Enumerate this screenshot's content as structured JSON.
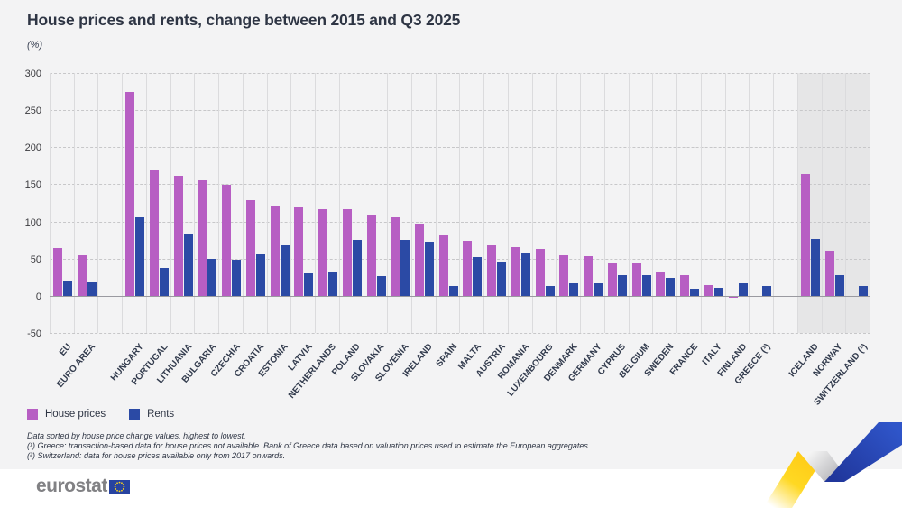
{
  "header": {
    "title": "House prices and rents, change between 2015 and Q3 2025",
    "unit_label": "(%)"
  },
  "chart_data": {
    "type": "bar",
    "title": "House prices and rents, change between 2015 and Q3 2025",
    "ylabel": "(%)",
    "xlabel": "",
    "ylim": [
      -50,
      300
    ],
    "yticks": [
      300,
      250,
      200,
      150,
      100,
      50,
      0,
      -50
    ],
    "grid": "horizontal dashed gridlines, vertical category separators",
    "legend_position": "bottom-left",
    "series": [
      {
        "name": "House prices",
        "color": "#b75ec3"
      },
      {
        "name": "Rents",
        "color": "#2b4aa5"
      }
    ],
    "entries": [
      {
        "label": "EU",
        "house_prices": 64,
        "rents": 21
      },
      {
        "label": "EURO AREA",
        "house_prices": 54,
        "rents": 19
      },
      {
        "gap": true
      },
      {
        "label": "HUNGARY",
        "house_prices": 275,
        "rents": 106
      },
      {
        "label": "PORTUGAL",
        "house_prices": 170,
        "rents": 37
      },
      {
        "label": "LITHUANIA",
        "house_prices": 161,
        "rents": 84
      },
      {
        "label": "BULGARIA",
        "house_prices": 155,
        "rents": 50
      },
      {
        "label": "CZECHIA",
        "house_prices": 149,
        "rents": 48
      },
      {
        "label": "CROATIA",
        "house_prices": 129,
        "rents": 57
      },
      {
        "label": "ESTONIA",
        "house_prices": 121,
        "rents": 69
      },
      {
        "label": "LATVIA",
        "house_prices": 120,
        "rents": 30
      },
      {
        "label": "NETHERLANDS",
        "house_prices": 117,
        "rents": 31
      },
      {
        "label": "POLAND",
        "house_prices": 117,
        "rents": 75
      },
      {
        "label": "SLOVAKIA",
        "house_prices": 109,
        "rents": 27
      },
      {
        "label": "SLOVENIA",
        "house_prices": 106,
        "rents": 75
      },
      {
        "label": "IRELAND",
        "house_prices": 97,
        "rents": 73
      },
      {
        "label": "SPAIN",
        "house_prices": 83,
        "rents": 13
      },
      {
        "label": "MALTA",
        "house_prices": 74,
        "rents": 52
      },
      {
        "label": "AUSTRIA",
        "house_prices": 68,
        "rents": 46
      },
      {
        "label": "ROMANIA",
        "house_prices": 65,
        "rents": 58
      },
      {
        "label": "LUXEMBOURG",
        "house_prices": 63,
        "rents": 13
      },
      {
        "label": "DENMARK",
        "house_prices": 55,
        "rents": 17
      },
      {
        "label": "GERMANY",
        "house_prices": 53,
        "rents": 17
      },
      {
        "label": "CYPRUS",
        "house_prices": 45,
        "rents": 28
      },
      {
        "label": "BELGIUM",
        "house_prices": 44,
        "rents": 28
      },
      {
        "label": "SWEDEN",
        "house_prices": 33,
        "rents": 24
      },
      {
        "label": "FRANCE",
        "house_prices": 28,
        "rents": 9
      },
      {
        "label": "ITALY",
        "house_prices": 15,
        "rents": 11
      },
      {
        "label": "FINLAND",
        "house_prices": -2,
        "rents": 17
      },
      {
        "label": "GREECE (¹)",
        "house_prices": null,
        "rents": 13
      },
      {
        "gap": true
      },
      {
        "label": "ICELAND",
        "house_prices": 164,
        "rents": 76,
        "shaded": true
      },
      {
        "label": "NORWAY",
        "house_prices": 61,
        "rents": 28,
        "shaded": true
      },
      {
        "label": "SWITZERLAND (²)",
        "house_prices": null,
        "rents": 13,
        "shaded": true
      }
    ]
  },
  "legend": {
    "items": [
      {
        "label": "House prices",
        "color": "#b75ec3"
      },
      {
        "label": "Rents",
        "color": "#2b4aa5"
      }
    ]
  },
  "footnotes": {
    "line1": "Data sorted by house price change values, highest to lowest.",
    "line2": "(¹) Greece: transaction-based data for house prices not available. Bank of Greece data based on valuation prices used to estimate the European aggregates.",
    "line3": "(²) Switzerland: data for house prices available only from 2017 onwards."
  },
  "footer": {
    "logo_text": "eurostat"
  },
  "colors": {
    "house_prices": "#b75ec3",
    "rents": "#2b4aa5",
    "background": "#f3f3f4",
    "efta_shade": "#e6e6e7",
    "ribbon_yellow": "#ffd617",
    "ribbon_blue": "#2743b0"
  }
}
